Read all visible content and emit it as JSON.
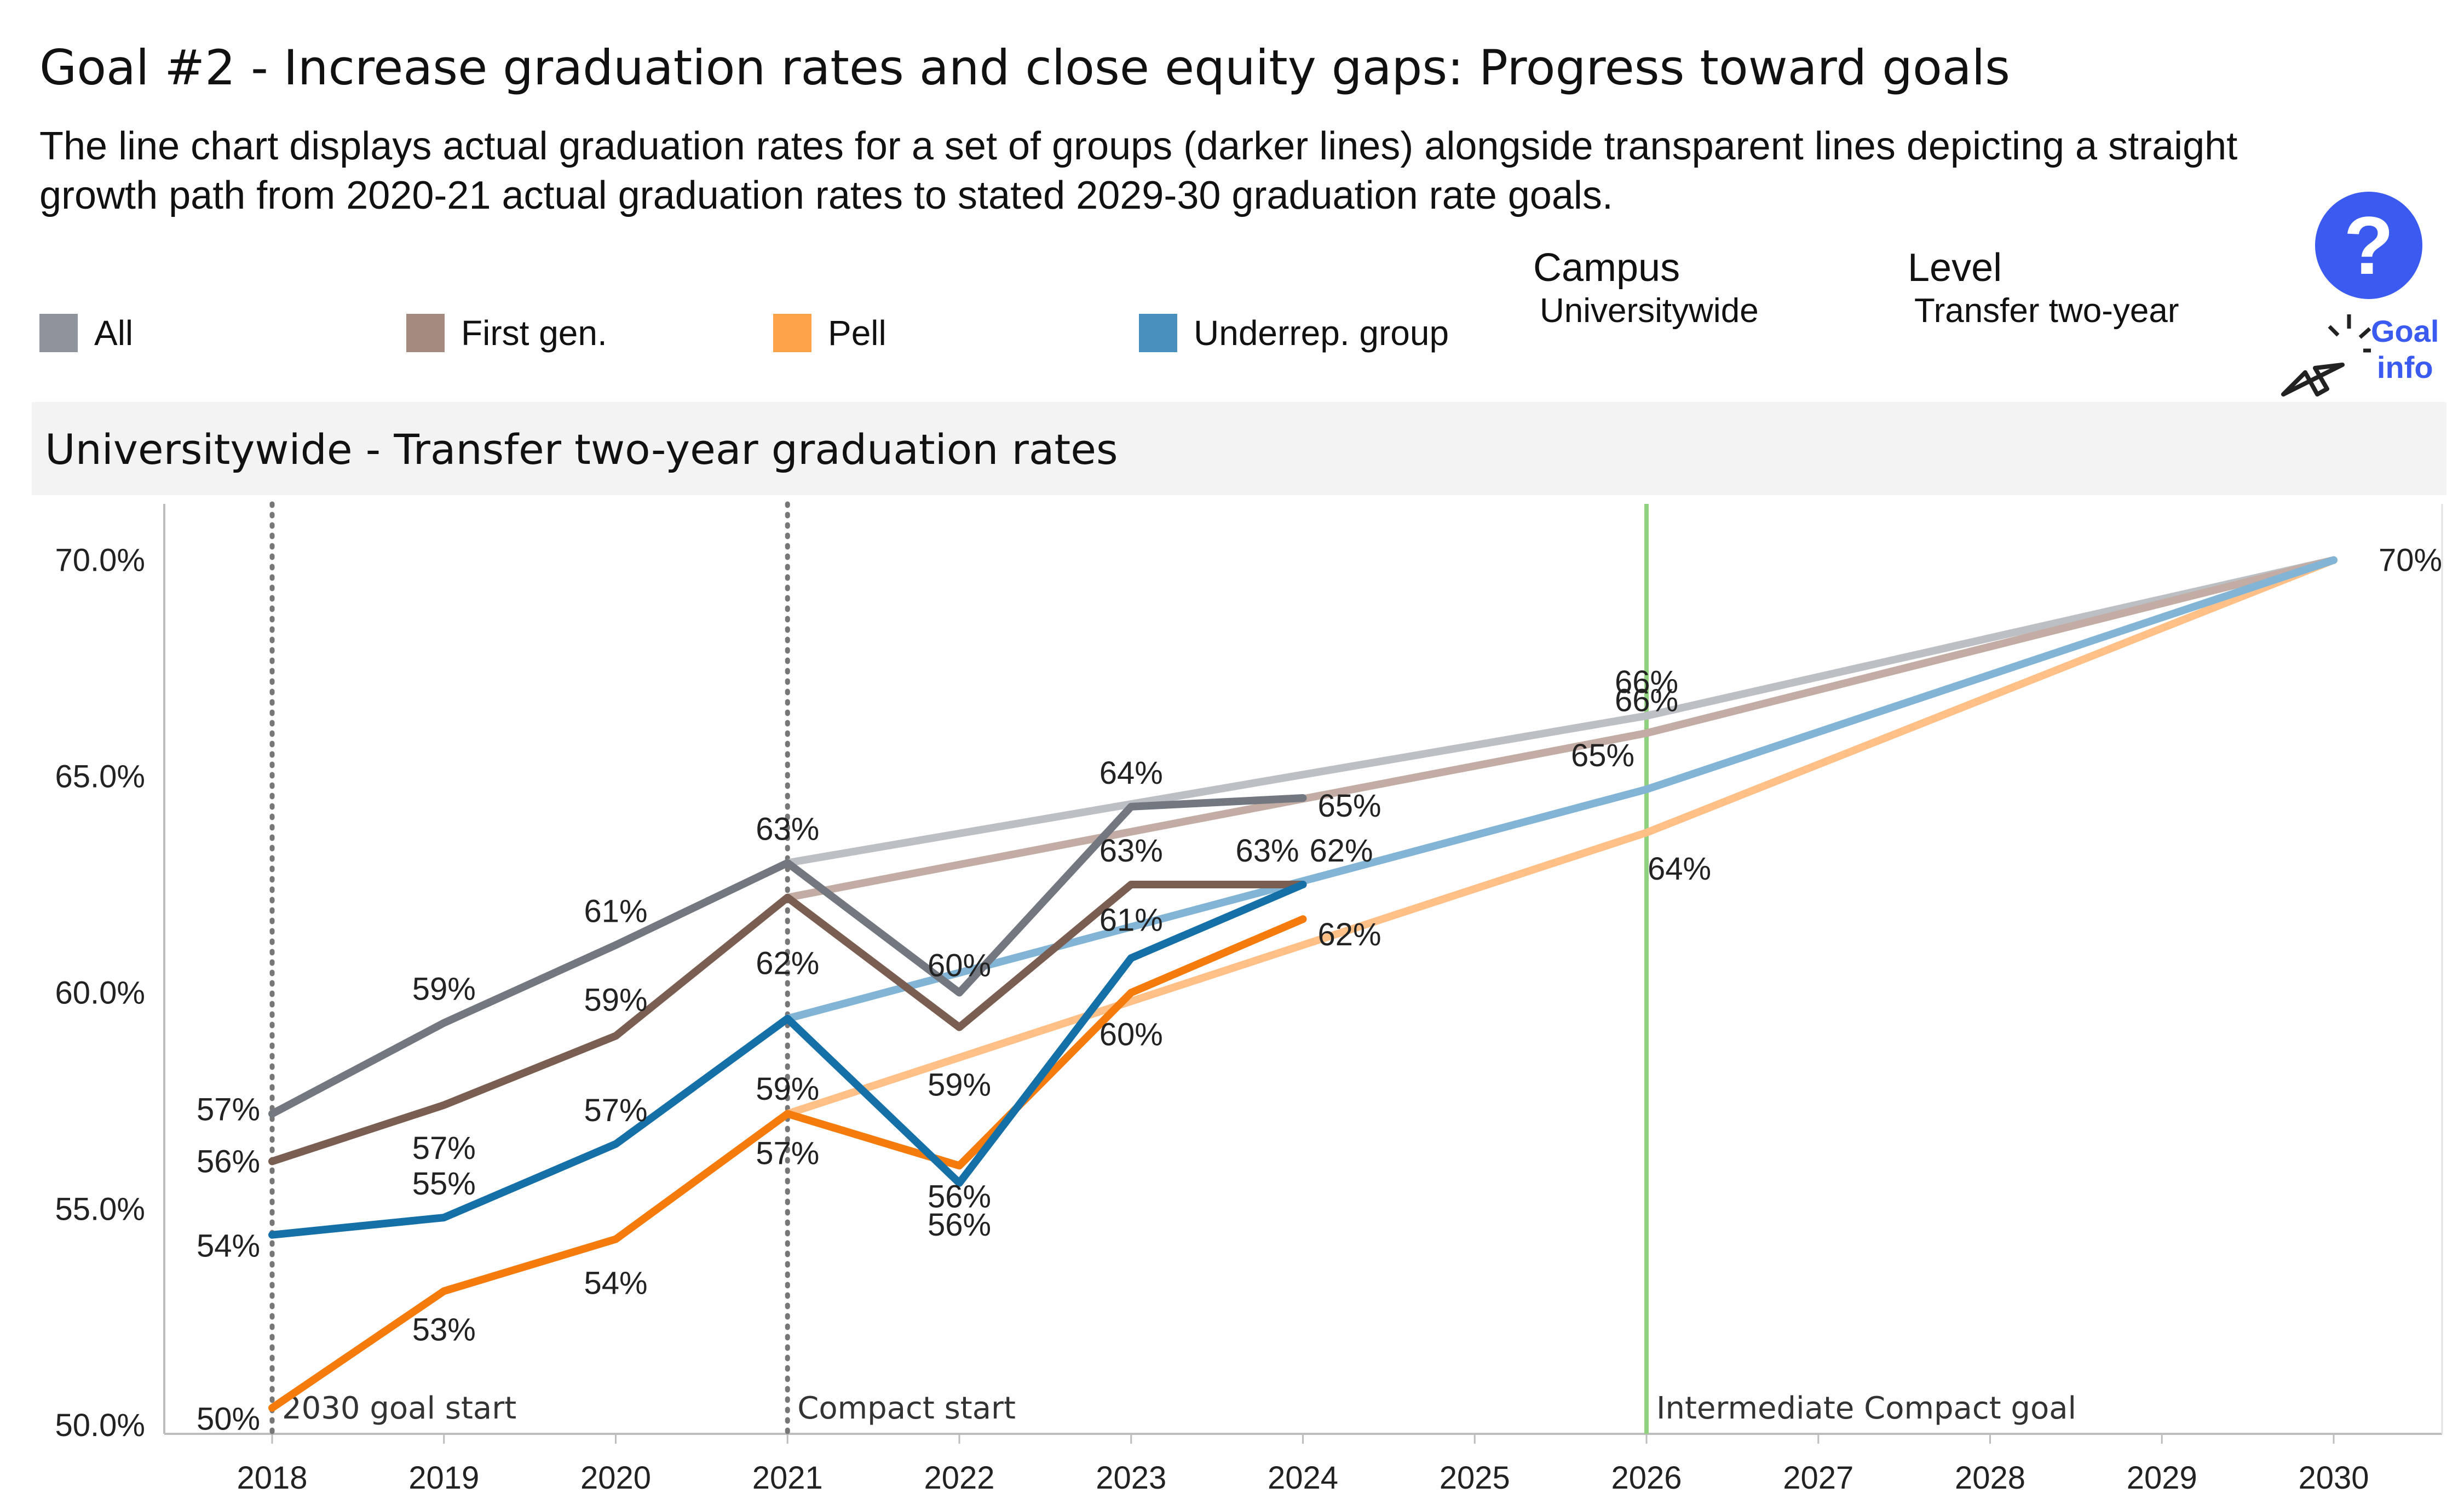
{
  "title": "Goal #2 - Increase graduation rates and close equity gaps: Progress toward goals",
  "description": "The line chart displays actual graduation rates for a set of groups (darker lines) alongside transparent lines depicting a straight growth path from 2020-21 actual graduation rates to stated 2029-30 graduation rate goals.",
  "legend": [
    {
      "label": "All",
      "color": "#8f939c"
    },
    {
      "label": "First gen.",
      "color": "#a58b7f"
    },
    {
      "label": "Pell",
      "color": "#ffa34a"
    },
    {
      "label": "Underrep. group",
      "color": "#4a90bf"
    }
  ],
  "filters": {
    "campus_label": "Campus",
    "campus_value": "Universitywide",
    "level_label": "Level",
    "level_value": "Transfer two-year"
  },
  "help": {
    "icon": "question-mark-icon",
    "symbol": "?",
    "link_line1": "Goal",
    "link_line2": "info",
    "color": "#3b5bf0"
  },
  "panel_title": "Universitywide - Transfer two-year graduation rates",
  "chart_data": {
    "type": "line",
    "x": [
      2018,
      2019,
      2020,
      2021,
      2022,
      2023,
      2024,
      2025,
      2026,
      2027,
      2028,
      2029,
      2030
    ],
    "y_ticks": [
      "70.0%",
      "65.0%",
      "60.0%",
      "55.0%",
      "50.0%"
    ],
    "ylim": [
      49.8,
      71.3
    ],
    "series": [
      {
        "name": "All",
        "color": "#727780",
        "x": [
          2018,
          2019,
          2020,
          2021,
          2022,
          2023,
          2024
        ],
        "values": [
          57.2,
          59.3,
          61.1,
          63.0,
          60.0,
          64.3,
          64.5
        ],
        "labels": [
          "57%",
          "59%",
          "61%",
          "63%",
          "60%",
          "64%",
          "65%"
        ]
      },
      {
        "name": "First gen.",
        "color": "#7b5e52",
        "x": [
          2018,
          2019,
          2020,
          2021,
          2022,
          2023,
          2024
        ],
        "values": [
          56.1,
          57.4,
          59.0,
          62.2,
          59.2,
          62.5,
          62.5
        ],
        "labels": [
          "56%",
          "57%",
          "59%",
          "62%",
          "59%",
          "63%",
          "63%"
        ]
      },
      {
        "name": "Pell",
        "color": "#f57c0c",
        "x": [
          2018,
          2019,
          2020,
          2021,
          2022,
          2023,
          2024
        ],
        "values": [
          50.4,
          53.1,
          54.3,
          57.2,
          56.0,
          60.0,
          61.7
        ],
        "labels": [
          "50%",
          "53%",
          "54%",
          "57%",
          "56%",
          "60%",
          "62%"
        ]
      },
      {
        "name": "Underrep. group",
        "color": "#1670a8",
        "x": [
          2018,
          2019,
          2020,
          2021,
          2022,
          2023,
          2024
        ],
        "values": [
          54.4,
          54.8,
          56.5,
          59.4,
          55.6,
          60.8,
          62.5
        ],
        "labels": [
          "54%",
          "55%",
          "57%",
          "59%",
          "56%",
          "61%",
          "62%"
        ]
      }
    ],
    "goal_paths": [
      {
        "group": "All",
        "color": "#bcbfc4",
        "x": [
          2021,
          2026,
          2030
        ],
        "values": [
          63.0,
          66.4,
          70.0
        ],
        "labels": [
          "",
          "66%",
          "70%"
        ]
      },
      {
        "group": "First gen.",
        "color": "#c3aca3",
        "x": [
          2021,
          2026,
          2030
        ],
        "values": [
          62.2,
          66.0,
          70.0
        ],
        "labels": [
          "",
          "66%",
          ""
        ]
      },
      {
        "group": "Pell",
        "color": "#ffc088",
        "x": [
          2021,
          2026,
          2030
        ],
        "values": [
          57.2,
          63.7,
          70.0
        ],
        "labels": [
          "",
          "64%",
          ""
        ]
      },
      {
        "group": "Underrep. group",
        "color": "#82b4d6",
        "x": [
          2021,
          2026,
          2030
        ],
        "values": [
          59.4,
          64.7,
          70.0
        ],
        "labels": [
          "",
          "65%",
          ""
        ]
      }
    ],
    "reference_lines": [
      {
        "x": 2018,
        "label": "2030 goal start",
        "style": "dotted",
        "color": "#777777"
      },
      {
        "x": 2021,
        "label": "Compact start",
        "style": "dotted",
        "color": "#777777"
      },
      {
        "x": 2026,
        "label": "Intermediate Compact goal",
        "style": "solid",
        "color": "#8fd17e"
      }
    ]
  }
}
